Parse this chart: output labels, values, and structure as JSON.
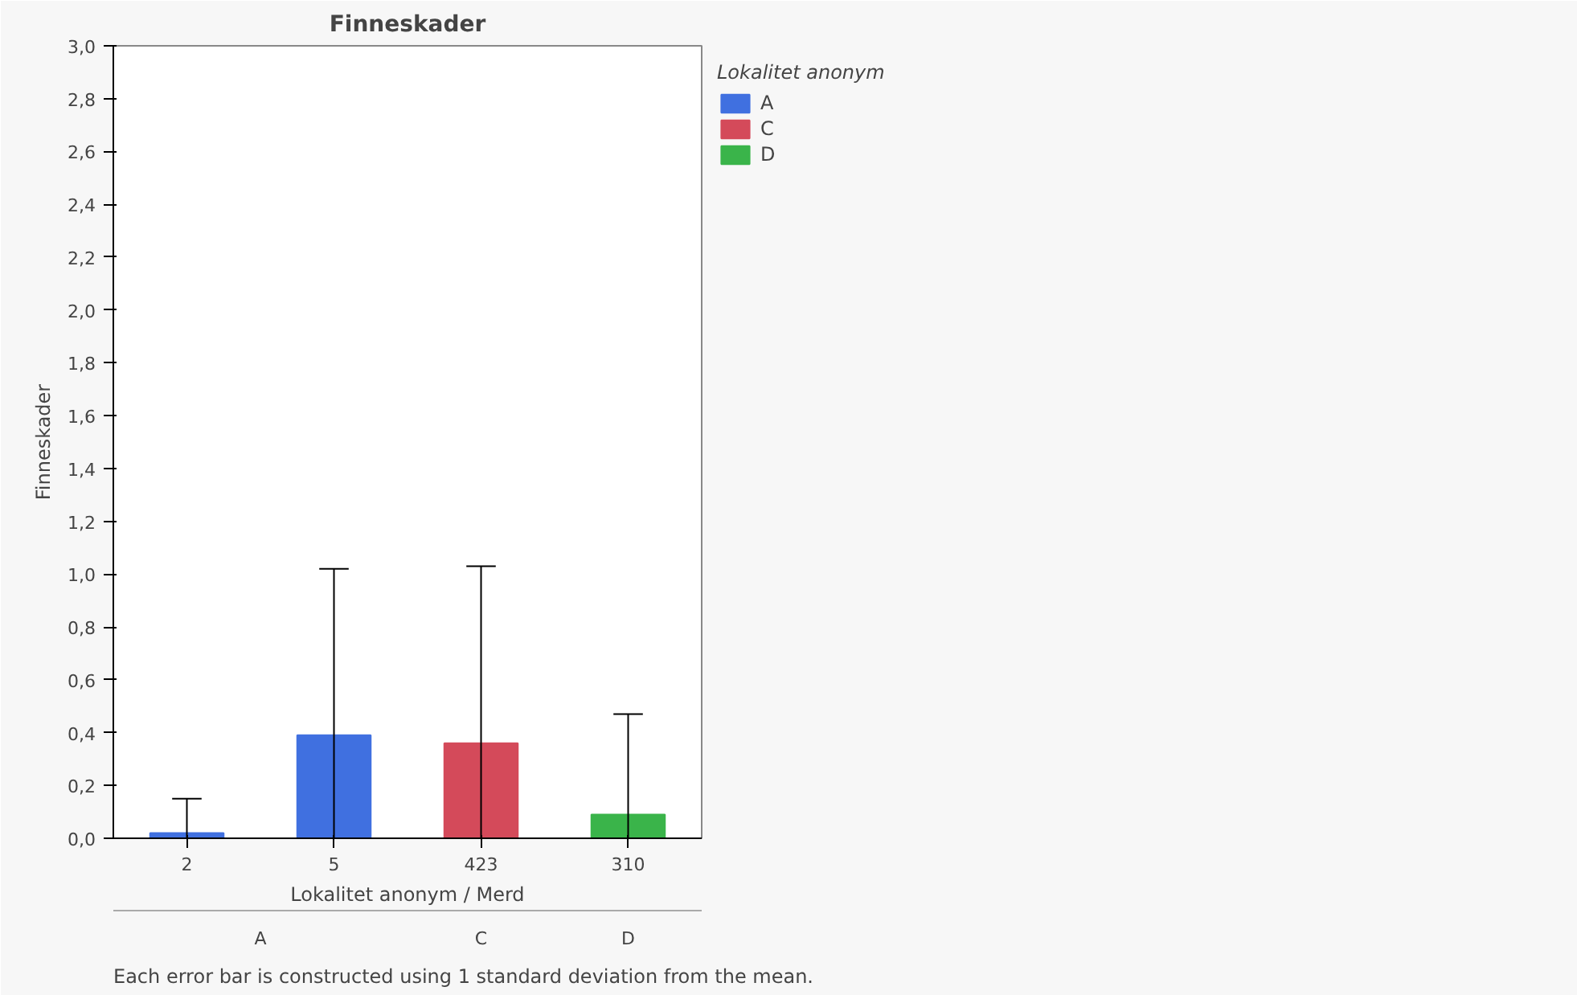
{
  "chart_data": {
    "type": "bar",
    "title": "Finneskader",
    "xlabel": "Lokalitet anonym / Merd",
    "ylabel": "Finneskader",
    "legend_title": "Lokalitet anonym",
    "categories": [
      "2",
      "5",
      "423",
      "310"
    ],
    "series": [
      {
        "name": "A",
        "color": "#4070e0",
        "values": [
          0.02,
          0.39,
          null,
          null
        ],
        "errors": [
          [
            0,
            0.15
          ],
          [
            0,
            1.02
          ],
          null,
          null
        ]
      },
      {
        "name": "C",
        "color": "#d44a5a",
        "values": [
          null,
          null,
          0.36,
          null
        ],
        "errors": [
          null,
          null,
          [
            0,
            1.03
          ],
          null
        ]
      },
      {
        "name": "D",
        "color": "#3ab44a",
        "values": [
          null,
          null,
          null,
          0.09
        ],
        "errors": [
          null,
          null,
          null,
          [
            0,
            0.47
          ]
        ]
      }
    ],
    "ylim": [
      0,
      3.0
    ],
    "yticks": [
      {
        "value": 0,
        "label": "0,0"
      },
      {
        "value": 0.2,
        "label": "0,2"
      },
      {
        "value": 0.4,
        "label": "0,4"
      },
      {
        "value": 0.6,
        "label": "0,6"
      },
      {
        "value": 0.8,
        "label": "0,8"
      },
      {
        "value": 1.0,
        "label": "1,0"
      },
      {
        "value": 1.2,
        "label": "1,2"
      },
      {
        "value": 1.4,
        "label": "1,4"
      },
      {
        "value": 1.6,
        "label": "1,6"
      },
      {
        "value": 1.8,
        "label": "1,8"
      },
      {
        "value": 2.0,
        "label": "2,0"
      },
      {
        "value": 2.2,
        "label": "2,2"
      },
      {
        "value": 2.4,
        "label": "2,4"
      },
      {
        "value": 2.6,
        "label": "2,6"
      },
      {
        "value": 2.8,
        "label": "2,8"
      },
      {
        "value": 3.0,
        "label": "3,0"
      }
    ],
    "grid": false,
    "legend": "right",
    "annotations": [
      "Each error bar is constructed using 1 standard deviation from the mean."
    ]
  }
}
